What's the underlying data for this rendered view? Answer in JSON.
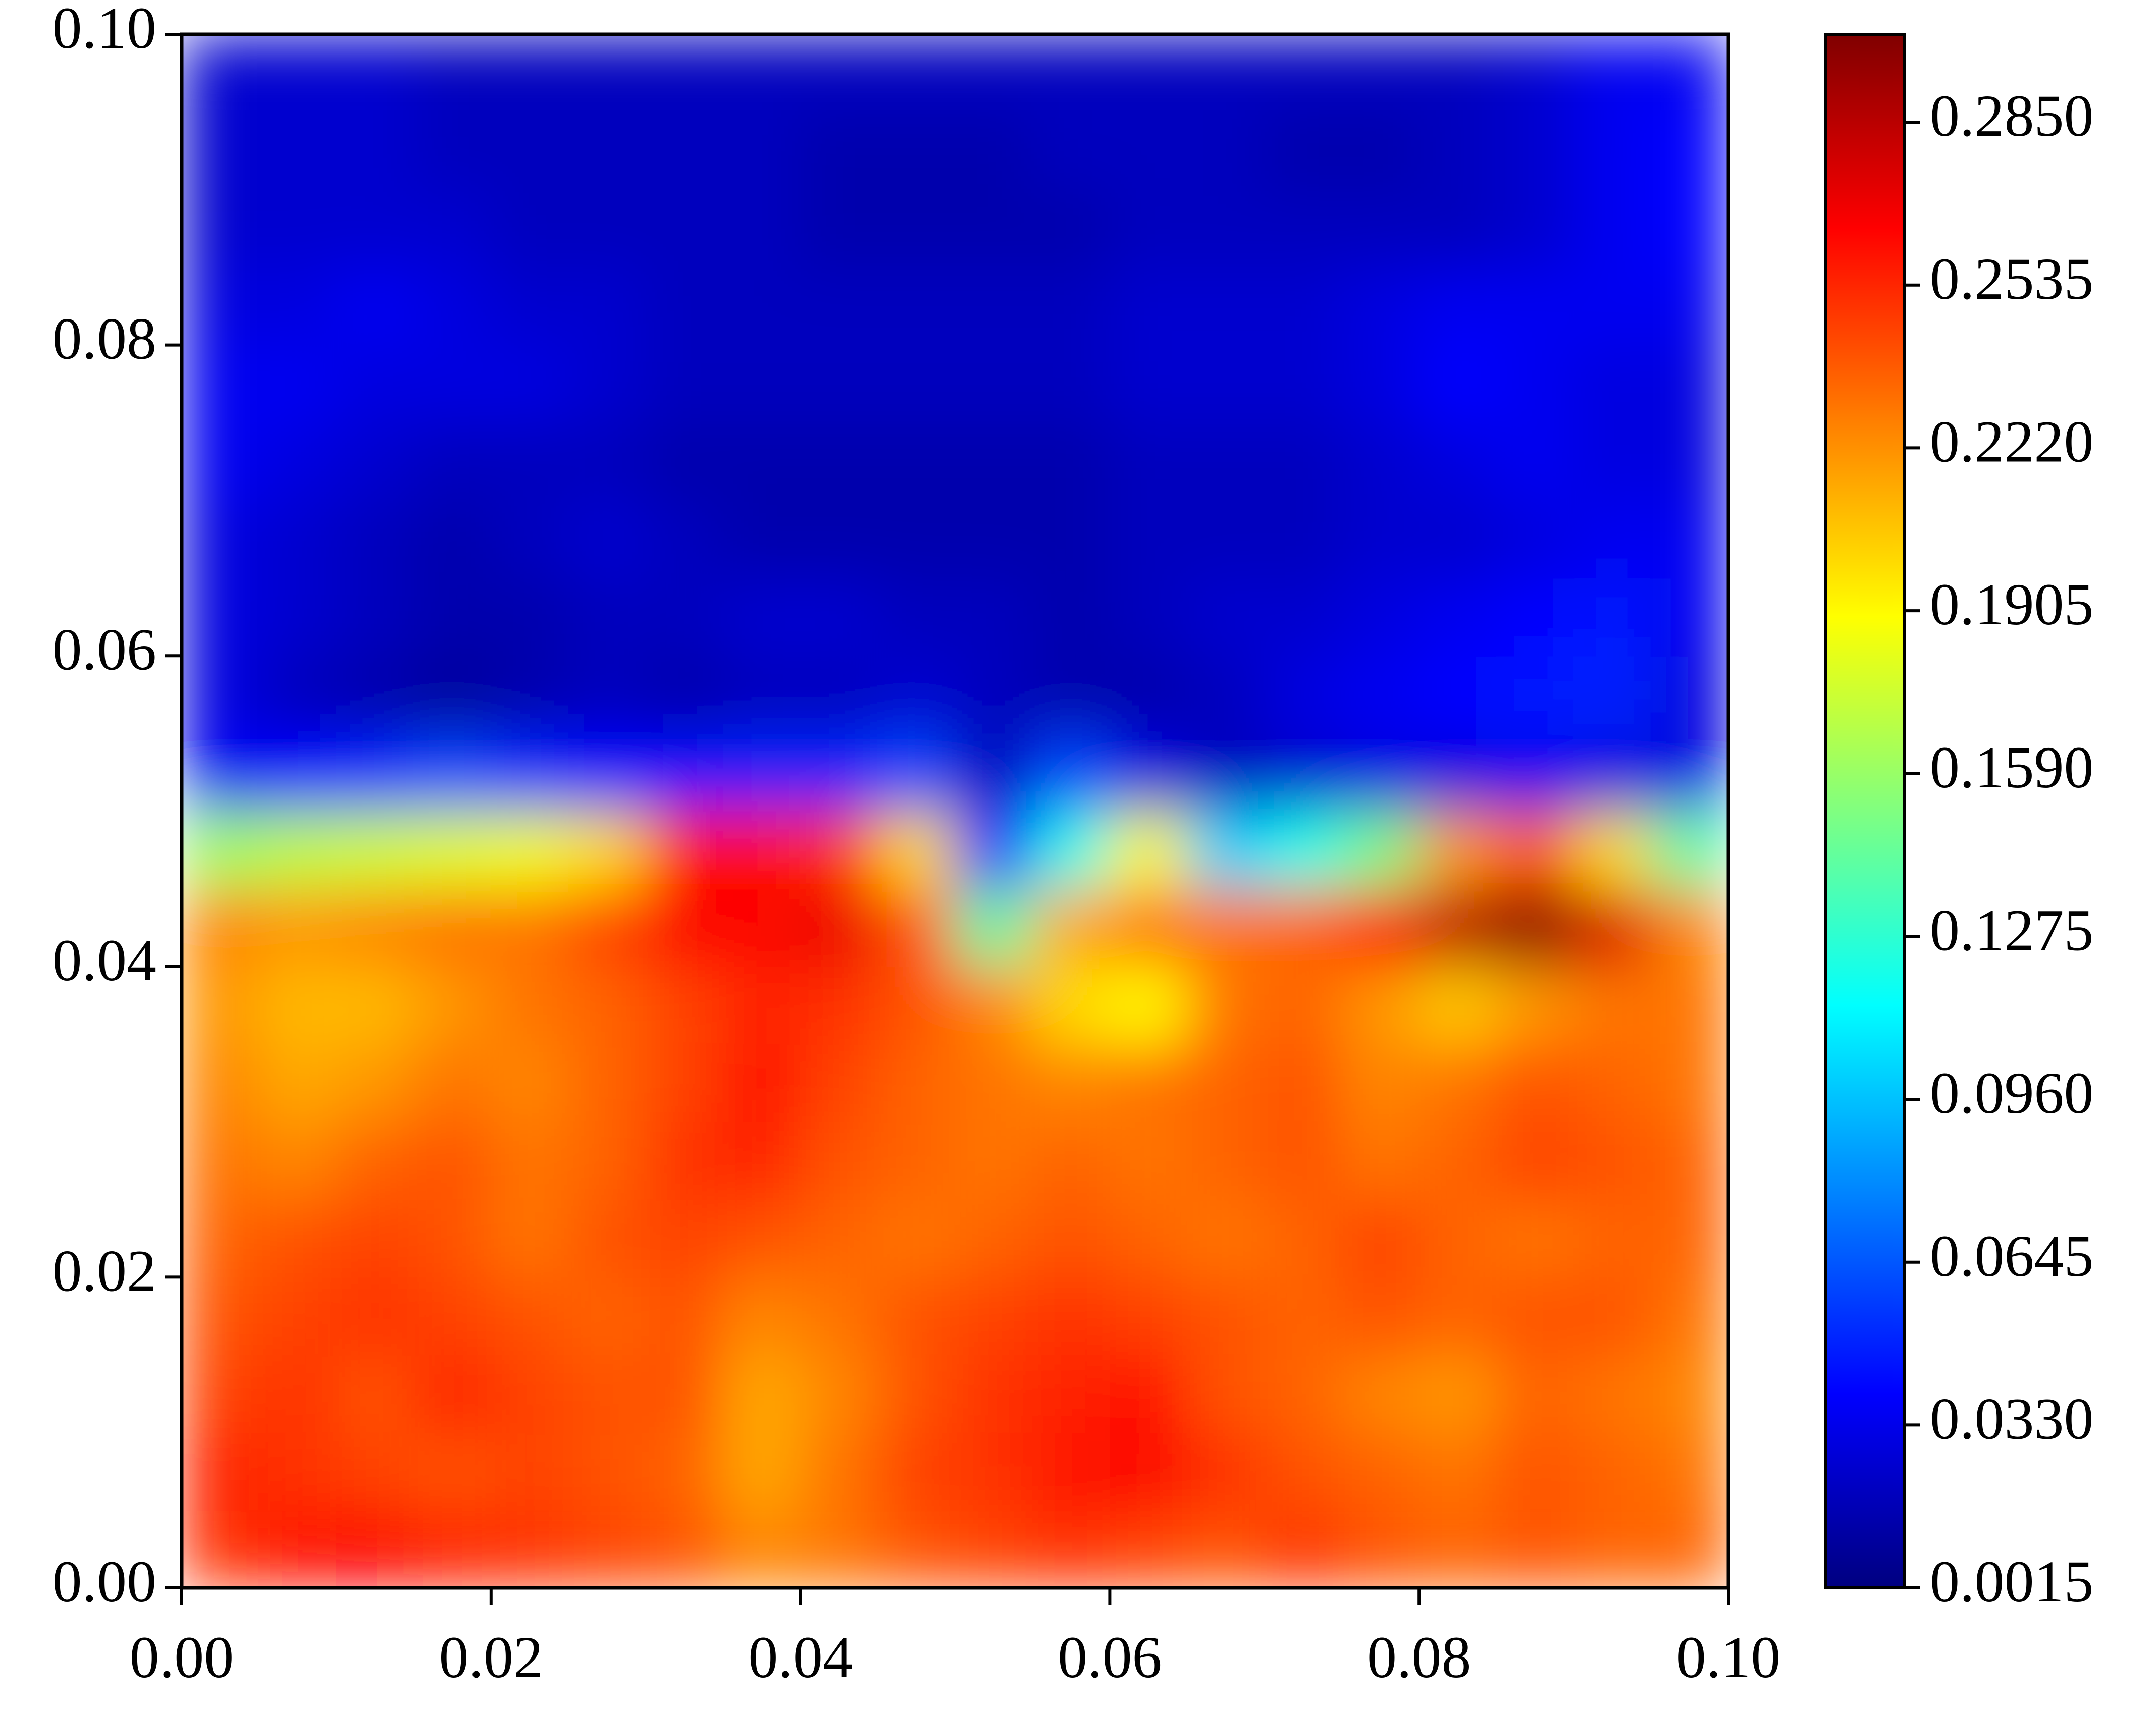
{
  "chart_data": {
    "type": "heatmap",
    "colormap": "jet",
    "x": [
      0.0025,
      0.0075,
      0.0125,
      0.0175,
      0.0225,
      0.0275,
      0.0325,
      0.0375,
      0.0425,
      0.0475,
      0.0525,
      0.0575,
      0.0625,
      0.0675,
      0.0725,
      0.0775,
      0.0825,
      0.0875,
      0.0925,
      0.0975
    ],
    "y": [
      0.0025,
      0.0075,
      0.0125,
      0.0175,
      0.0225,
      0.0275,
      0.0325,
      0.0375,
      0.0425,
      0.0475,
      0.0525,
      0.0575,
      0.0625,
      0.0675,
      0.0725,
      0.0775,
      0.0825,
      0.0875,
      0.0925,
      0.0975
    ],
    "z": [
      [
        0.25,
        0.26,
        0.265,
        0.255,
        0.25,
        0.245,
        0.24,
        0.225,
        0.23,
        0.24,
        0.245,
        0.25,
        0.245,
        0.24,
        0.25,
        0.24,
        0.235,
        0.24,
        0.235,
        0.235
      ],
      [
        0.255,
        0.25,
        0.245,
        0.24,
        0.245,
        0.24,
        0.235,
        0.215,
        0.23,
        0.245,
        0.25,
        0.26,
        0.265,
        0.25,
        0.24,
        0.235,
        0.23,
        0.24,
        0.235,
        0.23
      ],
      [
        0.245,
        0.25,
        0.24,
        0.255,
        0.245,
        0.24,
        0.24,
        0.215,
        0.225,
        0.24,
        0.25,
        0.255,
        0.26,
        0.24,
        0.235,
        0.225,
        0.22,
        0.235,
        0.23,
        0.225
      ],
      [
        0.24,
        0.245,
        0.25,
        0.245,
        0.24,
        0.235,
        0.24,
        0.225,
        0.23,
        0.24,
        0.245,
        0.25,
        0.245,
        0.24,
        0.235,
        0.24,
        0.235,
        0.24,
        0.24,
        0.23
      ],
      [
        0.235,
        0.24,
        0.245,
        0.24,
        0.23,
        0.24,
        0.245,
        0.24,
        0.235,
        0.23,
        0.235,
        0.24,
        0.235,
        0.23,
        0.235,
        0.245,
        0.235,
        0.23,
        0.235,
        0.235
      ],
      [
        0.23,
        0.225,
        0.235,
        0.24,
        0.23,
        0.235,
        0.25,
        0.255,
        0.24,
        0.235,
        0.23,
        0.235,
        0.23,
        0.235,
        0.24,
        0.23,
        0.235,
        0.245,
        0.24,
        0.235
      ],
      [
        0.225,
        0.215,
        0.22,
        0.23,
        0.225,
        0.235,
        0.245,
        0.26,
        0.245,
        0.235,
        0.23,
        0.225,
        0.23,
        0.235,
        0.24,
        0.225,
        0.23,
        0.24,
        0.235,
        0.23
      ],
      [
        0.22,
        0.21,
        0.21,
        0.22,
        0.23,
        0.235,
        0.245,
        0.255,
        0.25,
        0.24,
        0.225,
        0.2,
        0.19,
        0.23,
        0.235,
        0.22,
        0.205,
        0.22,
        0.23,
        0.23
      ],
      [
        0.225,
        0.22,
        0.225,
        0.23,
        0.23,
        0.245,
        0.265,
        0.265,
        0.27,
        0.24,
        0.14,
        0.215,
        0.23,
        0.23,
        0.235,
        0.26,
        0.285,
        0.3,
        0.275,
        0.225
      ],
      [
        0.16,
        0.17,
        0.175,
        0.18,
        0.185,
        0.2,
        0.26,
        0.26,
        0.25,
        0.2,
        0.04,
        0.12,
        0.19,
        0.1,
        0.12,
        0.15,
        0.22,
        0.24,
        0.2,
        0.14
      ],
      [
        0.035,
        0.04,
        0.05,
        0.06,
        0.05,
        0.04,
        0.045,
        0.05,
        0.05,
        0.06,
        0.02,
        0.06,
        0.03,
        0.02,
        0.025,
        0.03,
        0.03,
        0.035,
        0.03,
        0.03
      ],
      [
        0.03,
        0.02,
        0.015,
        0.01,
        0.015,
        0.02,
        0.015,
        0.02,
        0.02,
        0.025,
        0.02,
        0.015,
        0.015,
        0.02,
        0.03,
        0.035,
        0.04,
        0.045,
        0.05,
        0.03
      ],
      [
        0.03,
        0.025,
        0.02,
        0.015,
        0.015,
        0.02,
        0.02,
        0.025,
        0.025,
        0.02,
        0.02,
        0.015,
        0.02,
        0.025,
        0.025,
        0.03,
        0.035,
        0.04,
        0.045,
        0.035
      ],
      [
        0.03,
        0.025,
        0.02,
        0.015,
        0.02,
        0.025,
        0.02,
        0.015,
        0.015,
        0.015,
        0.015,
        0.015,
        0.02,
        0.02,
        0.02,
        0.025,
        0.025,
        0.03,
        0.035,
        0.035
      ],
      [
        0.035,
        0.03,
        0.025,
        0.02,
        0.02,
        0.02,
        0.015,
        0.015,
        0.015,
        0.015,
        0.015,
        0.015,
        0.02,
        0.02,
        0.02,
        0.025,
        0.03,
        0.035,
        0.03,
        0.03
      ],
      [
        0.035,
        0.035,
        0.03,
        0.03,
        0.03,
        0.025,
        0.02,
        0.02,
        0.02,
        0.02,
        0.02,
        0.02,
        0.025,
        0.025,
        0.025,
        0.03,
        0.04,
        0.035,
        0.03,
        0.03
      ],
      [
        0.03,
        0.03,
        0.035,
        0.03,
        0.025,
        0.025,
        0.02,
        0.02,
        0.02,
        0.02,
        0.02,
        0.02,
        0.025,
        0.025,
        0.025,
        0.03,
        0.035,
        0.035,
        0.035,
        0.035
      ],
      [
        0.025,
        0.025,
        0.025,
        0.025,
        0.02,
        0.02,
        0.02,
        0.02,
        0.015,
        0.015,
        0.015,
        0.015,
        0.02,
        0.02,
        0.02,
        0.02,
        0.02,
        0.025,
        0.035,
        0.04
      ],
      [
        0.025,
        0.025,
        0.025,
        0.02,
        0.02,
        0.02,
        0.02,
        0.02,
        0.015,
        0.015,
        0.015,
        0.02,
        0.02,
        0.02,
        0.015,
        0.015,
        0.02,
        0.025,
        0.035,
        0.04
      ],
      [
        0.025,
        0.025,
        0.025,
        0.02,
        0.02,
        0.02,
        0.02,
        0.02,
        0.02,
        0.02,
        0.02,
        0.02,
        0.02,
        0.02,
        0.02,
        0.02,
        0.02,
        0.025,
        0.035,
        0.035
      ]
    ],
    "xlim": [
      0,
      0.1
    ],
    "ylim": [
      0,
      0.1
    ],
    "xticks": [
      {
        "value": 0,
        "label": "0.00"
      },
      0.02,
      0.04,
      0.06,
      0.08,
      {
        "value": 0.1,
        "label": "0.10"
      }
    ],
    "yticks": [
      {
        "value": 0,
        "label": "0.00"
      },
      0.02,
      0.04,
      0.06,
      0.08,
      {
        "value": 0.1,
        "label": "0.10"
      }
    ],
    "clim": [
      0.0015,
      0.302
    ],
    "cticks": [
      0.0015,
      {
        "value": 0.033,
        "label": "0.0330"
      },
      0.0645,
      {
        "value": 0.096,
        "label": "0.0960"
      },
      0.1275,
      {
        "value": 0.159,
        "label": "0.1590"
      },
      0.1905,
      {
        "value": 0.222,
        "label": "0.2220"
      },
      0.2535,
      {
        "value": 0.285,
        "label": "0.2850"
      }
    ]
  }
}
